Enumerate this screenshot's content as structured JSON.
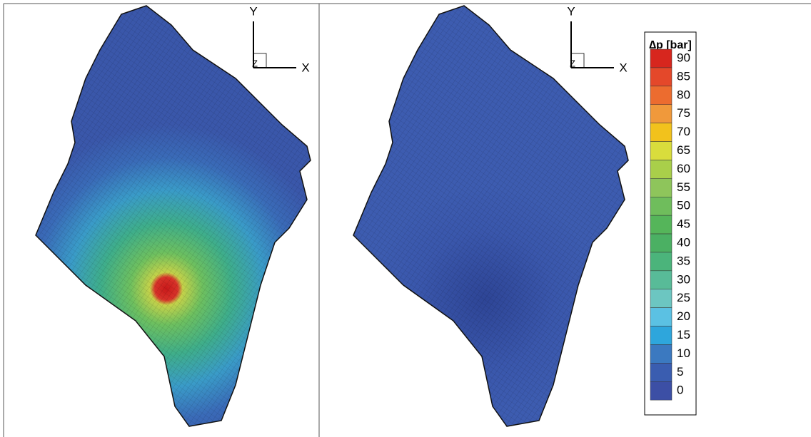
{
  "chart_data": {
    "type": "contour",
    "panels": [
      {
        "axis_labels": {
          "x": "X",
          "y": "Y",
          "z": "Z"
        }
      },
      {
        "axis_labels": {
          "x": "X",
          "y": "Y",
          "z": "Z"
        }
      }
    ],
    "colorbar": {
      "title": "∆p [bar]",
      "ticks": [
        90,
        85,
        80,
        75,
        70,
        65,
        60,
        55,
        50,
        45,
        40,
        35,
        30,
        25,
        20,
        15,
        10,
        5,
        0
      ],
      "colors": [
        "#d7261e",
        "#e4482a",
        "#ec6c2f",
        "#f0993b",
        "#f2c21c",
        "#d9dd3c",
        "#a9cf4a",
        "#8ec55b",
        "#6fbd5c",
        "#55b55a",
        "#4bb063",
        "#4bb47b",
        "#58bb98",
        "#6cc6c1",
        "#5bc1e3",
        "#2ea6dc",
        "#3b79c0",
        "#3a5db0",
        "#3c4fa5"
      ]
    }
  }
}
